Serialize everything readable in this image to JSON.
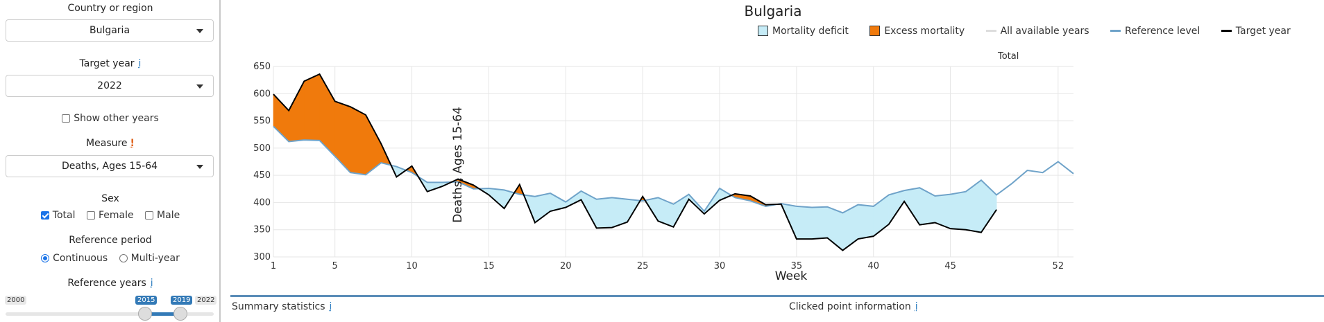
{
  "sidebar": {
    "country_label": "Country or region",
    "country_value": "Bulgaria",
    "target_year_label": "Target year",
    "target_year_info": "i",
    "target_year_value": "2022",
    "show_other_years_label": "Show other years",
    "show_other_years_checked": false,
    "measure_label": "Measure",
    "measure_warn": "!",
    "measure_value": "Deaths, Ages 15-64",
    "sex_label": "Sex",
    "sex_options": [
      {
        "label": "Total",
        "checked": true
      },
      {
        "label": "Female",
        "checked": false
      },
      {
        "label": "Male",
        "checked": false
      }
    ],
    "reference_period_label": "Reference period",
    "reference_period_options": [
      {
        "label": "Continuous",
        "selected": true
      },
      {
        "label": "Multi-year",
        "selected": false
      }
    ],
    "reference_years_label": "Reference years",
    "reference_years_info": "i",
    "slider": {
      "min": "2000",
      "max": "2022",
      "from": "2015",
      "to": "2019"
    }
  },
  "chart_data": {
    "type": "area",
    "title": "Bulgaria",
    "subtitle": "Total",
    "xlabel": "Week",
    "ylabel": "Deaths, Ages 15-64",
    "xlim": [
      1,
      53
    ],
    "ylim": [
      300,
      650
    ],
    "x_ticks": [
      1,
      5,
      10,
      15,
      20,
      25,
      30,
      35,
      40,
      45,
      52
    ],
    "y_ticks": [
      300,
      350,
      400,
      450,
      500,
      550,
      600,
      650
    ],
    "grid": true,
    "legend": {
      "position": "top",
      "items": [
        {
          "label": "Mortality deficit",
          "kind": "area",
          "color": "#c6ecf7"
        },
        {
          "label": "Excess mortality",
          "kind": "area",
          "color": "#f07a0c"
        },
        {
          "label": "All available years",
          "kind": "line",
          "color": "#dddddd"
        },
        {
          "label": "Reference level",
          "kind": "line",
          "color": "#6fa3c9"
        },
        {
          "label": "Target year",
          "kind": "line",
          "color": "#000000"
        }
      ]
    },
    "series": [
      {
        "name": "Reference level",
        "x": [
          1,
          2,
          3,
          4,
          5,
          6,
          7,
          8,
          9,
          10,
          11,
          12,
          13,
          14,
          15,
          16,
          17,
          18,
          19,
          20,
          21,
          22,
          23,
          24,
          25,
          26,
          27,
          28,
          29,
          30,
          31,
          32,
          33,
          34,
          35,
          36,
          37,
          38,
          39,
          40,
          41,
          42,
          43,
          44,
          45,
          46,
          47,
          48,
          49,
          50,
          51,
          52,
          53
        ],
        "values": [
          540,
          512,
          515,
          514,
          485,
          455,
          451,
          473,
          466,
          455,
          437,
          437,
          438,
          425,
          426,
          423,
          415,
          411,
          417,
          401,
          421,
          406,
          409,
          406,
          403,
          409,
          397,
          415,
          384,
          426,
          409,
          403,
          393,
          398,
          393,
          391,
          392,
          381,
          396,
          393,
          414,
          422,
          427,
          412,
          415,
          420,
          441,
          414,
          435,
          459,
          455,
          475,
          453
        ]
      },
      {
        "name": "Target year",
        "x": [
          1,
          2,
          3,
          4,
          5,
          6,
          7,
          8,
          9,
          10,
          11,
          12,
          13,
          14,
          15,
          16,
          17,
          18,
          19,
          20,
          21,
          22,
          23,
          24,
          25,
          26,
          27,
          28,
          29,
          30,
          31,
          32,
          33,
          34,
          35,
          36,
          37,
          38,
          39,
          40,
          41,
          42,
          43,
          44,
          45,
          46,
          47,
          48
        ],
        "values": [
          599,
          569,
          623,
          636,
          586,
          576,
          561,
          508,
          447,
          467,
          420,
          430,
          443,
          432,
          414,
          389,
          433,
          363,
          384,
          391,
          405,
          353,
          354,
          364,
          411,
          366,
          355,
          406,
          379,
          404,
          416,
          412,
          396,
          397,
          333,
          333,
          335,
          312,
          333,
          338,
          360,
          402,
          359,
          363,
          352,
          350,
          345,
          387
        ]
      }
    ]
  },
  "bottom": {
    "summary_label": "Summary statistics",
    "summary_info": "i",
    "clicked_label": "Clicked point information",
    "clicked_info": "i"
  }
}
